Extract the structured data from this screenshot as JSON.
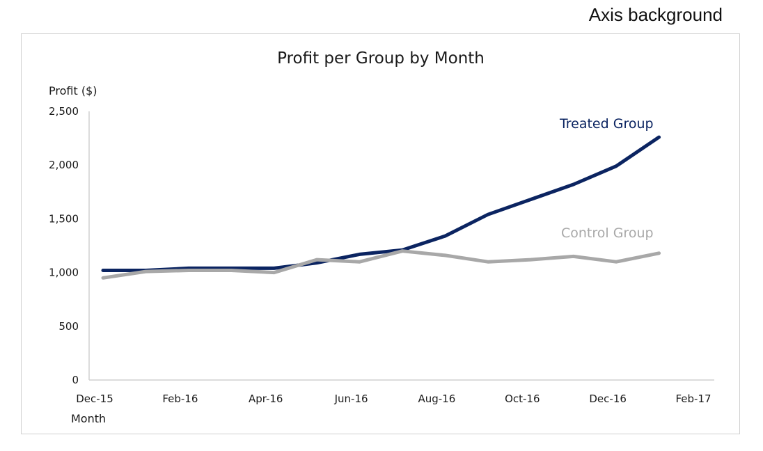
{
  "page": {
    "caption": "Axis background"
  },
  "chart_data": {
    "type": "line",
    "title": "Profit per Group by Month",
    "ylabel": "Profit ($)",
    "xlabel": "Month",
    "ylim": [
      0,
      2500
    ],
    "yticks": [
      0,
      500,
      1000,
      1500,
      2000,
      2500
    ],
    "ytick_labels": [
      "0",
      "500",
      "1,000",
      "1,500",
      "2,000",
      "2,500"
    ],
    "x_ticks": [
      "Dec-15",
      "Feb-16",
      "Apr-16",
      "Jun-16",
      "Aug-16",
      "Oct-16",
      "Dec-16",
      "Feb-17"
    ],
    "x": [
      "Dec-15",
      "Jan-16",
      "Feb-16",
      "Mar-16",
      "Apr-16",
      "May-16",
      "Jun-16",
      "Jul-16",
      "Aug-16",
      "Sep-16",
      "Oct-16",
      "Nov-16",
      "Dec-16",
      "Jan-17",
      "Feb-17"
    ],
    "grid": false,
    "legend": "inline labels at line ends",
    "series": [
      {
        "name": "Treated Group",
        "color": "#0b2461",
        "values": [
          1020,
          1020,
          1040,
          1040,
          1040,
          1090,
          1170,
          1210,
          1340,
          1540,
          1680,
          1820,
          1990,
          2260,
          null
        ]
      },
      {
        "name": "Control Group",
        "color": "#a8a8a8",
        "values": [
          950,
          1010,
          1020,
          1020,
          1000,
          1120,
          1100,
          1200,
          1160,
          1100,
          1120,
          1150,
          1100,
          1180,
          null
        ]
      }
    ]
  }
}
